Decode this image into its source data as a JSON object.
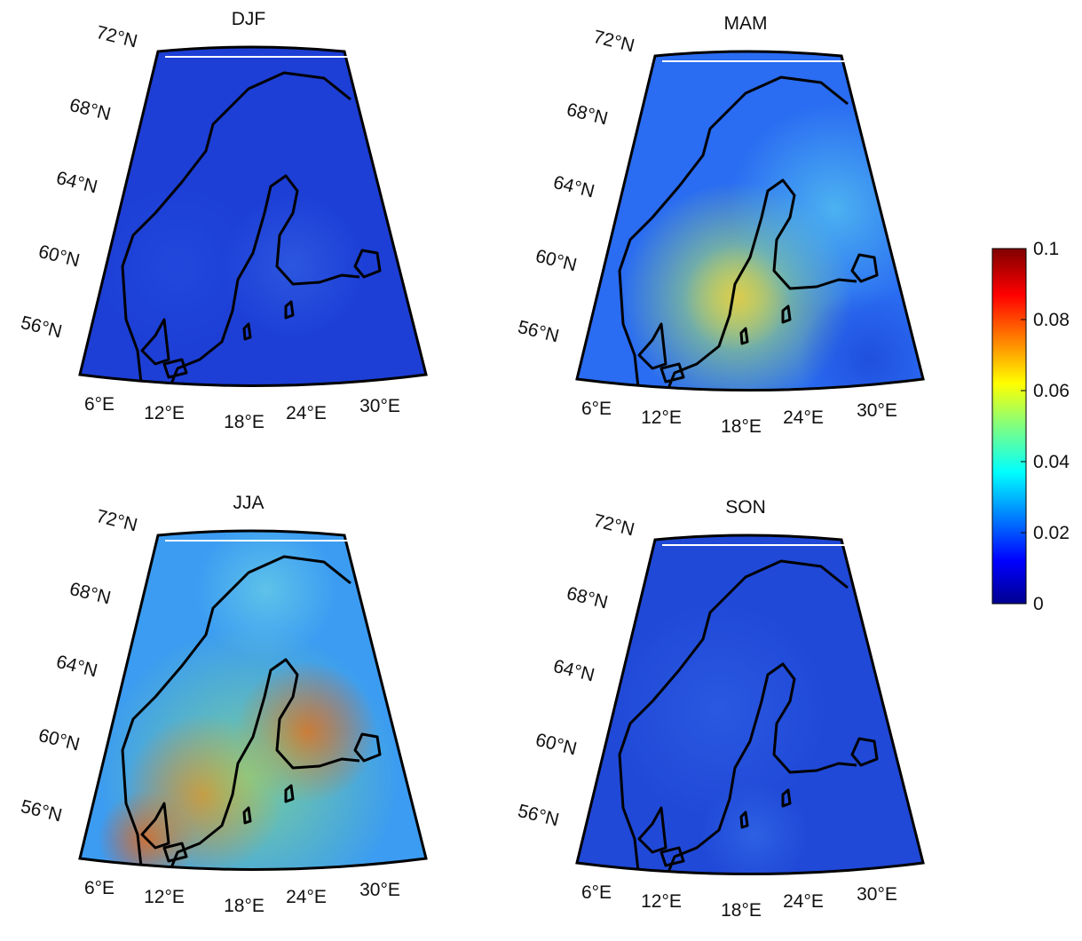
{
  "panels": [
    {
      "title": "DJF",
      "lat_labels": [
        "72°N",
        "68°N",
        "64°N",
        "60°N",
        "56°N"
      ],
      "lon_labels": [
        "6°E",
        "12°E",
        "18°E",
        "24°E",
        "30°E"
      ]
    },
    {
      "title": "MAM",
      "lat_labels": [
        "72°N",
        "68°N",
        "64°N",
        "60°N",
        "56°N"
      ],
      "lon_labels": [
        "6°E",
        "12°E",
        "18°E",
        "24°E",
        "30°E"
      ]
    },
    {
      "title": "JJA",
      "lat_labels": [
        "72°N",
        "68°N",
        "64°N",
        "60°N",
        "56°N"
      ],
      "lon_labels": [
        "6°E",
        "12°E",
        "18°E",
        "24°E",
        "30°E"
      ]
    },
    {
      "title": "SON",
      "lat_labels": [
        "72°N",
        "68°N",
        "64°N",
        "60°N",
        "56°N"
      ],
      "lon_labels": [
        "6°E",
        "12°E",
        "18°E",
        "24°E",
        "30°E"
      ]
    }
  ],
  "colorbar": {
    "range": [
      0,
      0.1
    ],
    "ticks": [
      0,
      0.02,
      0.04,
      0.06,
      0.08,
      0.1
    ]
  }
}
